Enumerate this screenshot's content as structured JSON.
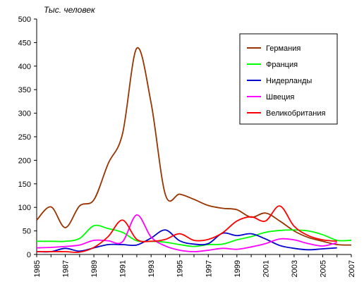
{
  "chart_data": {
    "type": "line",
    "unit_label": "Тыс. человек",
    "ylim": [
      0,
      500
    ],
    "y_ticks": [
      0,
      50,
      100,
      150,
      200,
      250,
      300,
      350,
      400,
      450,
      500
    ],
    "x_ticks": [
      "1985",
      "1987",
      "1989",
      "1991",
      "1993",
      "1995",
      "1997",
      "1999",
      "2001",
      "2003",
      "2005",
      "2007"
    ],
    "xlim": [
      1985,
      2007
    ],
    "grid": false,
    "legend_position": "top-right",
    "series": [
      {
        "name": "Германия",
        "color": "#993300",
        "points": [
          [
            1985,
            73
          ],
          [
            1986,
            101
          ],
          [
            1987,
            57
          ],
          [
            1988,
            103
          ],
          [
            1989,
            116
          ],
          [
            1990,
            193
          ],
          [
            1991,
            256
          ],
          [
            1992,
            438
          ],
          [
            1993,
            322
          ],
          [
            1994,
            127
          ],
          [
            1995,
            128
          ],
          [
            1996,
            117
          ],
          [
            1997,
            104
          ],
          [
            1998,
            98
          ],
          [
            1999,
            95
          ],
          [
            2000,
            79
          ],
          [
            2001,
            88
          ],
          [
            2002,
            71
          ],
          [
            2003,
            50
          ],
          [
            2004,
            36
          ],
          [
            2005,
            28
          ],
          [
            2006,
            21
          ],
          [
            2007,
            20
          ]
        ]
      },
      {
        "name": "Франция",
        "color": "#00ff00",
        "points": [
          [
            1985,
            28
          ],
          [
            1986,
            28
          ],
          [
            1987,
            28
          ],
          [
            1988,
            34
          ],
          [
            1989,
            61
          ],
          [
            1990,
            55
          ],
          [
            1991,
            47
          ],
          [
            1992,
            29
          ],
          [
            1993,
            28
          ],
          [
            1994,
            26
          ],
          [
            1995,
            21
          ],
          [
            1996,
            17
          ],
          [
            1997,
            21
          ],
          [
            1998,
            22
          ],
          [
            1999,
            31
          ],
          [
            2000,
            38
          ],
          [
            2001,
            47
          ],
          [
            2002,
            51
          ],
          [
            2003,
            52
          ],
          [
            2004,
            50
          ],
          [
            2005,
            42
          ],
          [
            2006,
            30
          ],
          [
            2007,
            30
          ]
        ]
      },
      {
        "name": "Нидерланды",
        "color": "#0000cc",
        "points": [
          [
            1985,
            6
          ],
          [
            1986,
            6
          ],
          [
            1987,
            13
          ],
          [
            1988,
            7
          ],
          [
            1989,
            14
          ],
          [
            1990,
            21
          ],
          [
            1991,
            21
          ],
          [
            1992,
            20
          ],
          [
            1993,
            35
          ],
          [
            1994,
            52
          ],
          [
            1995,
            29
          ],
          [
            1996,
            22
          ],
          [
            1997,
            23
          ],
          [
            1998,
            45
          ],
          [
            1999,
            40
          ],
          [
            2000,
            44
          ],
          [
            2001,
            33
          ],
          [
            2002,
            19
          ],
          [
            2003,
            13
          ],
          [
            2004,
            10
          ],
          [
            2005,
            12
          ],
          [
            2006,
            14
          ]
        ]
      },
      {
        "name": "Швеция",
        "color": "#ff00ff",
        "points": [
          [
            1985,
            14
          ],
          [
            1986,
            15
          ],
          [
            1987,
            17
          ],
          [
            1988,
            20
          ],
          [
            1989,
            30
          ],
          [
            1990,
            29
          ],
          [
            1991,
            27
          ],
          [
            1992,
            84
          ],
          [
            1993,
            37
          ],
          [
            1994,
            18
          ],
          [
            1995,
            9
          ],
          [
            1996,
            6
          ],
          [
            1997,
            9
          ],
          [
            1998,
            13
          ],
          [
            1999,
            11
          ],
          [
            2000,
            16
          ],
          [
            2001,
            23
          ],
          [
            2002,
            33
          ],
          [
            2003,
            31
          ],
          [
            2004,
            23
          ],
          [
            2005,
            18
          ],
          [
            2006,
            25
          ]
        ]
      },
      {
        "name": "Великобритания",
        "color": "#ff0000",
        "points": [
          [
            1985,
            6
          ],
          [
            1986,
            6
          ],
          [
            1987,
            6
          ],
          [
            1988,
            5
          ],
          [
            1989,
            15
          ],
          [
            1990,
            38
          ],
          [
            1991,
            73
          ],
          [
            1992,
            32
          ],
          [
            1993,
            28
          ],
          [
            1994,
            32
          ],
          [
            1995,
            44
          ],
          [
            1996,
            30
          ],
          [
            1997,
            32
          ],
          [
            1998,
            46
          ],
          [
            1999,
            71
          ],
          [
            2000,
            80
          ],
          [
            2001,
            71
          ],
          [
            2002,
            103
          ],
          [
            2003,
            60
          ],
          [
            2004,
            40
          ],
          [
            2005,
            31
          ],
          [
            2006,
            28
          ]
        ]
      }
    ]
  }
}
